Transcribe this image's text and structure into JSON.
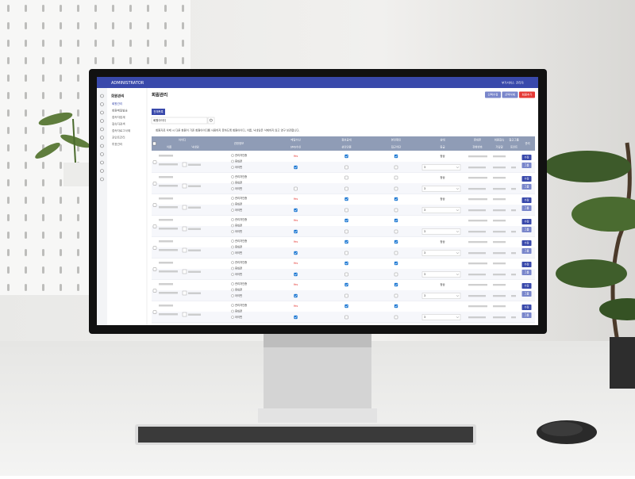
{
  "topbar": {
    "brand": "ADMINISTRATOR",
    "links": [
      "부가서비스",
      "관리자"
    ]
  },
  "sidebar": {
    "title": "회원관리",
    "items": [
      "회원관리",
      "회원메일발송",
      "접속자집계",
      "접속자검색",
      "접속자로그삭제",
      "포인트관리",
      "투표관리"
    ]
  },
  "page": {
    "title": "회원관리",
    "buttons": [
      "선택수정",
      "선택삭제",
      "회원추가"
    ],
    "tab": "전체목록",
    "search_field": "회원아이디",
    "notice": "회원자료 삭제 시 다른 회원이 기존 회원아이디를 사용하지 못하도록 회원아이디, 이름, 닉네임은 삭제하지 않고 영구 보관합니다."
  },
  "table": {
    "header1": [
      "아이디",
      "권한정보",
      "메일수신",
      "정보공개",
      "본인확인",
      "상태",
      "휴대폰",
      "최종접속",
      "접근그룹",
      "관리"
    ],
    "header2": [
      "이름",
      "닉네임",
      "SMS수신",
      "성인인증",
      "접근차단",
      "등급",
      "전화번호",
      "가입일",
      "포인트"
    ],
    "auth_options": [
      "관리자인증",
      "휴대폰",
      "아이핀"
    ],
    "actions": [
      "수정",
      "그룹"
    ],
    "rows": [
      {
        "mail": "Yes",
        "status": "정상",
        "level": "3",
        "checks": [
          true,
          true,
          true,
          false,
          false
        ]
      },
      {
        "status": "정상",
        "level": "3",
        "checks": [
          false,
          false,
          false,
          false,
          false
        ]
      },
      {
        "mail": "Yes",
        "status": "정상",
        "level": "3",
        "checks": [
          true,
          true,
          true,
          false,
          false
        ]
      },
      {
        "mail": "Yes",
        "level": "3",
        "checks": [
          true,
          true,
          true,
          false,
          false
        ]
      },
      {
        "mail": "Yes",
        "status": "정상",
        "level": "3",
        "checks": [
          true,
          true,
          true,
          false,
          false
        ]
      },
      {
        "mail": "Yes",
        "level": "3",
        "checks": [
          true,
          true,
          true,
          false,
          false
        ]
      },
      {
        "mail": "Yes",
        "status": "정상",
        "level": "3",
        "checks": [
          true,
          true,
          true,
          false,
          false
        ]
      },
      {
        "mail": "Yes",
        "level": "3",
        "checks": [
          true,
          true,
          true,
          false,
          false
        ]
      }
    ]
  }
}
